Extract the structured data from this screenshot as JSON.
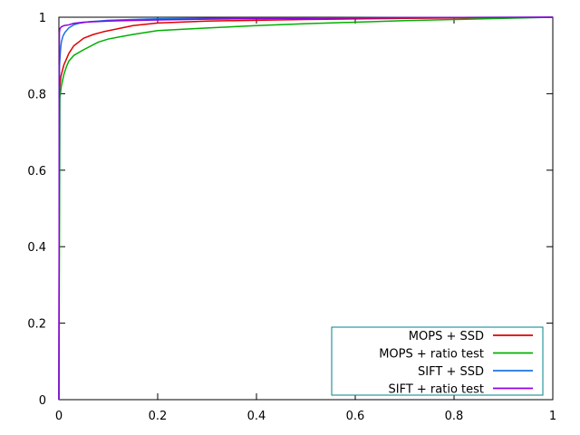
{
  "chart_data": {
    "type": "line",
    "title": "",
    "xlabel": "",
    "ylabel": "",
    "xlim": [
      0,
      1
    ],
    "ylim": [
      0,
      1
    ],
    "xticks": [
      "0",
      "0.2",
      "0.4",
      "0.6",
      "0.8",
      "1"
    ],
    "yticks": [
      "0",
      "0.2",
      "0.4",
      "0.6",
      "0.8",
      "1"
    ],
    "xtick_values": [
      0,
      0.2,
      0.4,
      0.6,
      0.8,
      1
    ],
    "ytick_values": [
      0,
      0.2,
      0.4,
      0.6,
      0.8,
      1
    ],
    "grid": false,
    "legend_position": "bottom-right",
    "legend_border_color": "#00808a",
    "series": [
      {
        "name": "MOPS + SSD",
        "color": "#e00000",
        "x": [
          0,
          0.001,
          0.002,
          0.004,
          0.007,
          0.01,
          0.015,
          0.02,
          0.03,
          0.04,
          0.05,
          0.07,
          0.09,
          0.12,
          0.15,
          0.2,
          0.3,
          0.5,
          0.7,
          0.9,
          1.0
        ],
        "y": [
          0,
          0.78,
          0.82,
          0.845,
          0.86,
          0.875,
          0.89,
          0.905,
          0.925,
          0.935,
          0.945,
          0.955,
          0.962,
          0.97,
          0.978,
          0.985,
          0.99,
          0.994,
          0.997,
          0.999,
          1.0
        ]
      },
      {
        "name": "MOPS + ratio test",
        "color": "#00b000",
        "x": [
          0,
          0.002,
          0.005,
          0.01,
          0.015,
          0.02,
          0.03,
          0.05,
          0.08,
          0.1,
          0.15,
          0.2,
          0.3,
          0.4,
          0.5,
          0.6,
          0.7,
          0.8,
          0.9,
          1.0
        ],
        "y": [
          0,
          0.79,
          0.82,
          0.85,
          0.87,
          0.885,
          0.9,
          0.915,
          0.935,
          0.943,
          0.955,
          0.965,
          0.972,
          0.978,
          0.983,
          0.987,
          0.991,
          0.994,
          0.997,
          1.0
        ]
      },
      {
        "name": "SIFT + SSD",
        "color": "#1a76e0",
        "x": [
          0,
          0.001,
          0.003,
          0.005,
          0.008,
          0.012,
          0.016,
          0.02,
          0.025,
          0.03,
          0.04,
          0.06,
          0.08,
          0.1,
          0.15,
          0.2,
          0.3,
          0.5,
          0.7,
          1.0
        ],
        "y": [
          0,
          0.87,
          0.91,
          0.935,
          0.95,
          0.96,
          0.966,
          0.972,
          0.976,
          0.98,
          0.984,
          0.988,
          0.99,
          0.992,
          0.994,
          0.996,
          0.997,
          0.998,
          0.999,
          1.0
        ]
      },
      {
        "name": "SIFT + ratio test",
        "color": "#9000e0",
        "x": [
          0,
          0.001,
          0.002,
          0.005,
          0.01,
          0.02,
          0.03,
          0.05,
          0.1,
          0.2,
          0.3,
          0.5,
          0.7,
          1.0
        ],
        "y": [
          0,
          0.96,
          0.97,
          0.975,
          0.978,
          0.98,
          0.984,
          0.987,
          0.99,
          0.993,
          0.995,
          0.997,
          0.999,
          1.0
        ]
      }
    ]
  }
}
